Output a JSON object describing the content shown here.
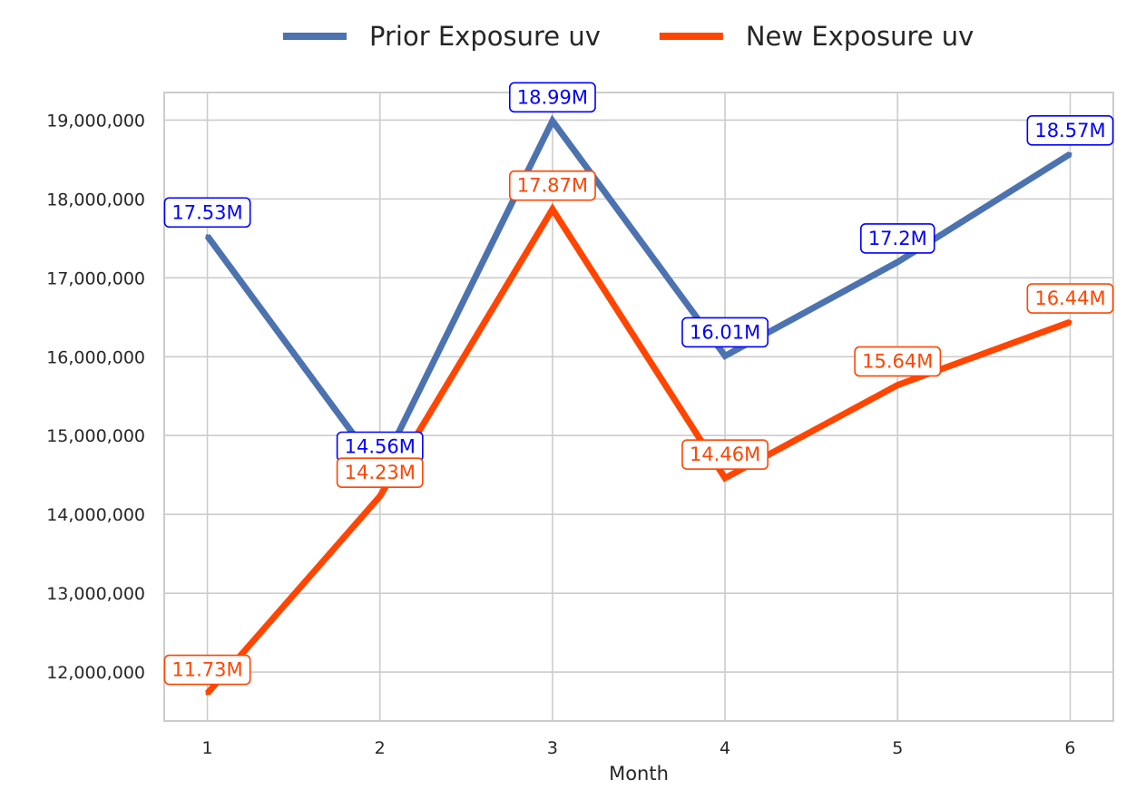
{
  "chart_data": {
    "type": "line",
    "title": "",
    "xlabel": "Month",
    "ylabel": "",
    "x": [
      1,
      2,
      3,
      4,
      5,
      6
    ],
    "xlim": [
      0.75,
      6.25
    ],
    "ylim": [
      11380000,
      19350000
    ],
    "yticks": [
      12000000,
      13000000,
      14000000,
      15000000,
      16000000,
      17000000,
      18000000,
      19000000
    ],
    "ytick_labels": [
      "12,000,000",
      "13,000,000",
      "14,000,000",
      "15,000,000",
      "16,000,000",
      "17,000,000",
      "18,000,000",
      "19,000,000"
    ],
    "xtick_labels": [
      "1",
      "2",
      "3",
      "4",
      "5",
      "6"
    ],
    "grid": true,
    "legend_position": "top-center",
    "series": [
      {
        "name": "Prior Exposure uv",
        "color": "#4c72b0",
        "label_color": "#0000ff",
        "values": [
          17530000,
          14560000,
          18990000,
          16010000,
          17200000,
          18570000
        ],
        "labels": [
          "17.53M",
          "14.56M",
          "18.99M",
          "16.01M",
          "17.2M",
          "18.57M"
        ]
      },
      {
        "name": "New Exposure uv",
        "color": "#ff4500",
        "label_color": "#ff4500",
        "values": [
          11730000,
          14230000,
          17870000,
          14460000,
          15640000,
          16440000
        ],
        "labels": [
          "11.73M",
          "14.23M",
          "17.87M",
          "14.46M",
          "15.64M",
          "16.44M"
        ]
      }
    ]
  }
}
